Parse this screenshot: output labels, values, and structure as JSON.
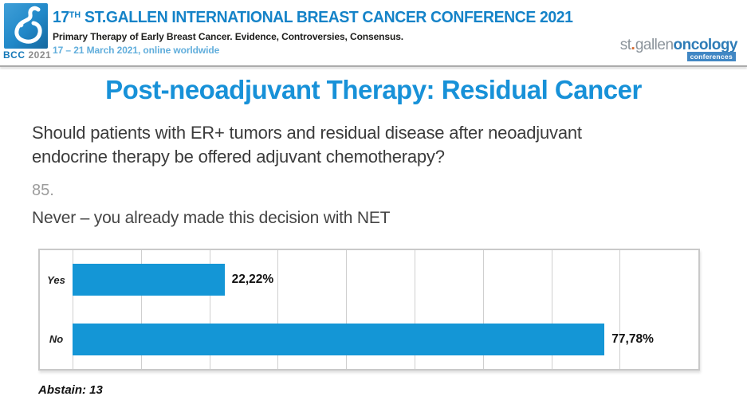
{
  "header": {
    "logo": {
      "bcc": "BCC",
      "year": "2021"
    },
    "title_prefix": "17",
    "title_sup": "TH",
    "title_rest": " ST.GALLEN INTERNATIONAL BREAST CANCER CONFERENCE 2021",
    "subtitle": "Primary Therapy of Early Breast Cancer. Evidence, Controversies, Consensus.",
    "dates": "17 – 21 March 2021, online worldwide",
    "org_logo": {
      "part1": "st",
      "dot": ".",
      "part2": "gallen",
      "part3": "oncology",
      "tagline": "conferences"
    }
  },
  "slide": {
    "title": "Post-neoadjuvant Therapy: Residual Cancer",
    "question_line1": "Should patients with ER+ tumors and residual disease after neoadjuvant",
    "question_line2": "endocrine therapy be offered adjuvant chemotherapy?",
    "question_number": "85.",
    "statement": "Never – you already made this decision with NET",
    "abstain": "Abstain: 13"
  },
  "chart_data": {
    "type": "bar",
    "orientation": "horizontal",
    "title": "",
    "xlabel": "",
    "ylabel": "",
    "categories": [
      "Yes",
      "No"
    ],
    "values": [
      22.22,
      77.78
    ],
    "value_labels": [
      "22,22%",
      "77,78%"
    ],
    "abstain_count": 13,
    "xlim": [
      0,
      91.5
    ],
    "gridline_interval": 10,
    "grid": true,
    "legend": false,
    "bar_color": "#1496D6"
  },
  "colors": {
    "bar_blue": "#1496D6",
    "slide_title_blue": "#1791D8",
    "header_blue": "#1583C8",
    "date_light_blue": "#61AEDC",
    "org_orange": "#D96B2F",
    "org_blue": "#2E7CB7"
  }
}
